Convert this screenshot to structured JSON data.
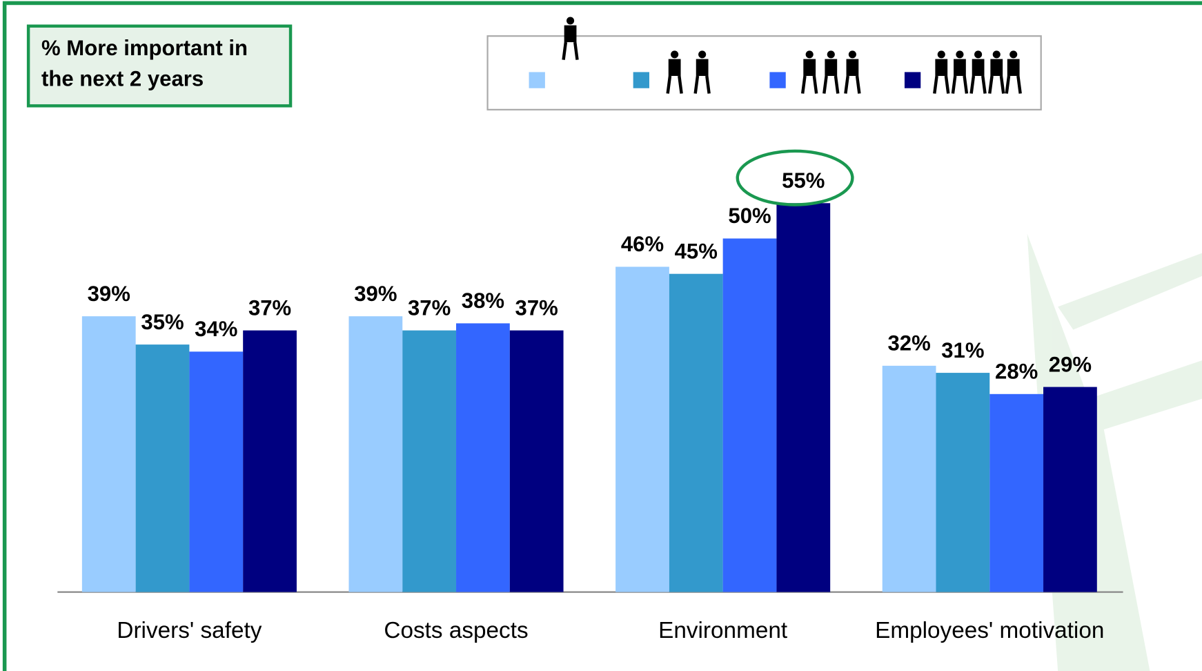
{
  "chart_data": {
    "type": "bar",
    "title": "% More important in the next 2 years",
    "categories": [
      "Drivers' safety",
      "Costs aspects",
      "Environment",
      "Employees' motivation"
    ],
    "series": [
      {
        "color": "#99ccff",
        "values": [
          39,
          39,
          46,
          32
        ],
        "value_labels": [
          "39%",
          "39%",
          "46%",
          "32%"
        ]
      },
      {
        "color": "#3399cc",
        "values": [
          35,
          37,
          45,
          31
        ],
        "value_labels": [
          "35%",
          "37%",
          "45%",
          "31%"
        ]
      },
      {
        "color": "#3366ff",
        "values": [
          34,
          38,
          50,
          28
        ],
        "value_labels": [
          "34%",
          "38%",
          "50%",
          "28%"
        ]
      },
      {
        "color": "#000080",
        "values": [
          37,
          37,
          55,
          29
        ],
        "value_labels": [
          "37%",
          "37%",
          "55%",
          "29%"
        ]
      }
    ]
  }
}
